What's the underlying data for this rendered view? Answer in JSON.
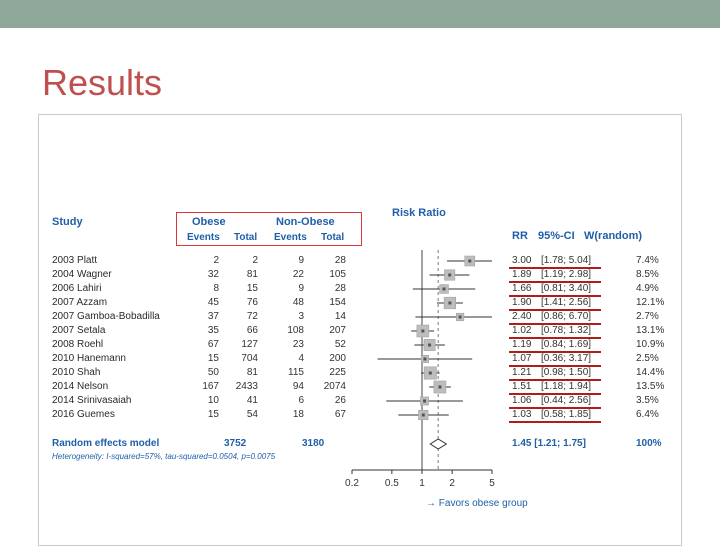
{
  "slide": {
    "title": "Results"
  },
  "table": {
    "study_header": "Study",
    "obese_header": "Obese",
    "nonobese_header": "Non-Obese",
    "events_label": "Events",
    "total_label": "Total",
    "rr_header": "RR",
    "ci_header": "95%-CI",
    "w_header": "W(random)",
    "risk_ratio_header": "Risk Ratio",
    "rows": [
      {
        "study": "2003 Platt",
        "oe": "2",
        "ot": "2",
        "ne": "9",
        "nt": "28",
        "rr": "3.00",
        "ci": "[1.78; 5.04]",
        "w": "7.4%"
      },
      {
        "study": "2004 Wagner",
        "oe": "32",
        "ot": "81",
        "ne": "22",
        "nt": "105",
        "rr": "1.89",
        "ci": "[1.19; 2.98]",
        "w": "8.5%"
      },
      {
        "study": "2006 Lahiri",
        "oe": "8",
        "ot": "15",
        "ne": "9",
        "nt": "28",
        "rr": "1.66",
        "ci": "[0.81; 3.40]",
        "w": "4.9%"
      },
      {
        "study": "2007 Azzam",
        "oe": "45",
        "ot": "76",
        "ne": "48",
        "nt": "154",
        "rr": "1.90",
        "ci": "[1.41; 2.56]",
        "w": "12.1%"
      },
      {
        "study": "2007 Gamboa-Bobadilla",
        "oe": "37",
        "ot": "72",
        "ne": "3",
        "nt": "14",
        "rr": "2.40",
        "ci": "[0.86; 6.70]",
        "w": "2.7%"
      },
      {
        "study": "2007 Setala",
        "oe": "35",
        "ot": "66",
        "ne": "108",
        "nt": "207",
        "rr": "1.02",
        "ci": "[0.78; 1.32]",
        "w": "13.1%"
      },
      {
        "study": "2008 Roehl",
        "oe": "67",
        "ot": "127",
        "ne": "23",
        "nt": "52",
        "rr": "1.19",
        "ci": "[0.84; 1.69]",
        "w": "10.9%"
      },
      {
        "study": "2010 Hanemann",
        "oe": "15",
        "ot": "704",
        "ne": "4",
        "nt": "200",
        "rr": "1.07",
        "ci": "[0.36; 3.17]",
        "w": "2.5%"
      },
      {
        "study": "2010 Shah",
        "oe": "50",
        "ot": "81",
        "ne": "115",
        "nt": "225",
        "rr": "1.21",
        "ci": "[0.98; 1.50]",
        "w": "14.4%"
      },
      {
        "study": "2014 Nelson",
        "oe": "167",
        "ot": "2433",
        "ne": "94",
        "nt": "2074",
        "rr": "1.51",
        "ci": "[1.18; 1.94]",
        "w": "13.5%"
      },
      {
        "study": "2014 Srinivasaiah",
        "oe": "10",
        "ot": "41",
        "ne": "6",
        "nt": "26",
        "rr": "1.06",
        "ci": "[0.44; 2.56]",
        "w": "3.5%"
      },
      {
        "study": "2016 Guemes",
        "oe": "15",
        "ot": "54",
        "ne": "18",
        "nt": "67",
        "rr": "1.03",
        "ci": "[0.58; 1.85]",
        "w": "6.4%"
      }
    ],
    "summary": {
      "label": "Random effects model",
      "obese_total": "3752",
      "nonobese_total": "3180",
      "rr_ci": "1.45 [1.21; 1.75]",
      "w": "100%"
    },
    "heterogeneity": "Heterogeneity: I-squared=57%, tau-squared=0.0504, p=0.0075"
  },
  "chart_data": {
    "type": "forest",
    "scale": "log",
    "x_ticks": [
      "0.2",
      "0.5",
      "1",
      "2",
      "5"
    ],
    "x_ticks_values": [
      0.2,
      0.5,
      1,
      2,
      5
    ],
    "xlim": [
      0.2,
      5
    ],
    "reference_line": 1,
    "xlabel": "→ Favors obese group",
    "points": [
      {
        "rr": 3.0,
        "lo": 1.78,
        "hi": 5.04,
        "w": 7.4
      },
      {
        "rr": 1.89,
        "lo": 1.19,
        "hi": 2.98,
        "w": 8.5
      },
      {
        "rr": 1.66,
        "lo": 0.81,
        "hi": 3.4,
        "w": 4.9
      },
      {
        "rr": 1.9,
        "lo": 1.41,
        "hi": 2.56,
        "w": 12.1
      },
      {
        "rr": 2.4,
        "lo": 0.86,
        "hi": 6.7,
        "w": 2.7
      },
      {
        "rr": 1.02,
        "lo": 0.78,
        "hi": 1.32,
        "w": 13.1
      },
      {
        "rr": 1.19,
        "lo": 0.84,
        "hi": 1.69,
        "w": 10.9
      },
      {
        "rr": 1.07,
        "lo": 0.36,
        "hi": 3.17,
        "w": 2.5
      },
      {
        "rr": 1.21,
        "lo": 0.98,
        "hi": 1.5,
        "w": 14.4
      },
      {
        "rr": 1.51,
        "lo": 1.18,
        "hi": 1.94,
        "w": 13.5
      },
      {
        "rr": 1.06,
        "lo": 0.44,
        "hi": 2.56,
        "w": 3.5
      },
      {
        "rr": 1.03,
        "lo": 0.58,
        "hi": 1.85,
        "w": 6.4
      }
    ],
    "summary": {
      "rr": 1.45,
      "lo": 1.21,
      "hi": 1.75
    },
    "colors": {
      "accent_blue": "#1f5fa8",
      "highlight_red": "#d83a3a",
      "title_red": "#c0504d"
    }
  }
}
